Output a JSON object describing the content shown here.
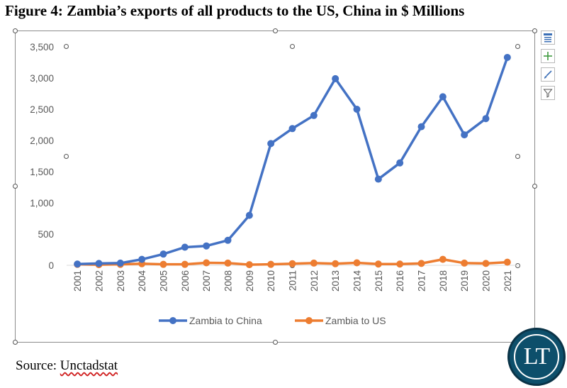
{
  "figure": {
    "title": "Figure 4: Zambia’s exports of all products to the US, China in $ Millions",
    "source_label": "Source:",
    "source_name": "Unctadstat"
  },
  "logo": {
    "text": "LT"
  },
  "side_tools": [
    {
      "icon": "chart-elements-icon"
    },
    {
      "icon": "plus-icon"
    },
    {
      "icon": "brush-icon"
    },
    {
      "icon": "filter-icon"
    }
  ],
  "chart_data": {
    "type": "line",
    "title": "",
    "xlabel": "",
    "ylabel": "",
    "x": [
      "2001",
      "2002",
      "2003",
      "2004",
      "2005",
      "2006",
      "2007",
      "2008",
      "2009",
      "2010",
      "2011",
      "2012",
      "2013",
      "2014",
      "2015",
      "2016",
      "2017",
      "2018",
      "2019",
      "2020",
      "2021"
    ],
    "yticks": [
      "0",
      "500",
      "1,000",
      "1,500",
      "2,000",
      "2,500",
      "3,000",
      "3,500"
    ],
    "ylim": [
      0,
      3500
    ],
    "grid": false,
    "legend_position": "bottom",
    "series": [
      {
        "name": "Zambia to China",
        "color": "#4472c4",
        "values": [
          20,
          30,
          35,
          95,
          180,
          290,
          310,
          400,
          800,
          1950,
          2190,
          2400,
          2990,
          2500,
          1380,
          1640,
          2220,
          2700,
          2090,
          2350,
          3330
        ]
      },
      {
        "name": "Zambia to US",
        "color": "#ed7d31",
        "values": [
          15,
          10,
          15,
          25,
          15,
          15,
          40,
          35,
          10,
          15,
          25,
          35,
          25,
          40,
          20,
          20,
          30,
          95,
          35,
          30,
          50
        ]
      }
    ]
  }
}
